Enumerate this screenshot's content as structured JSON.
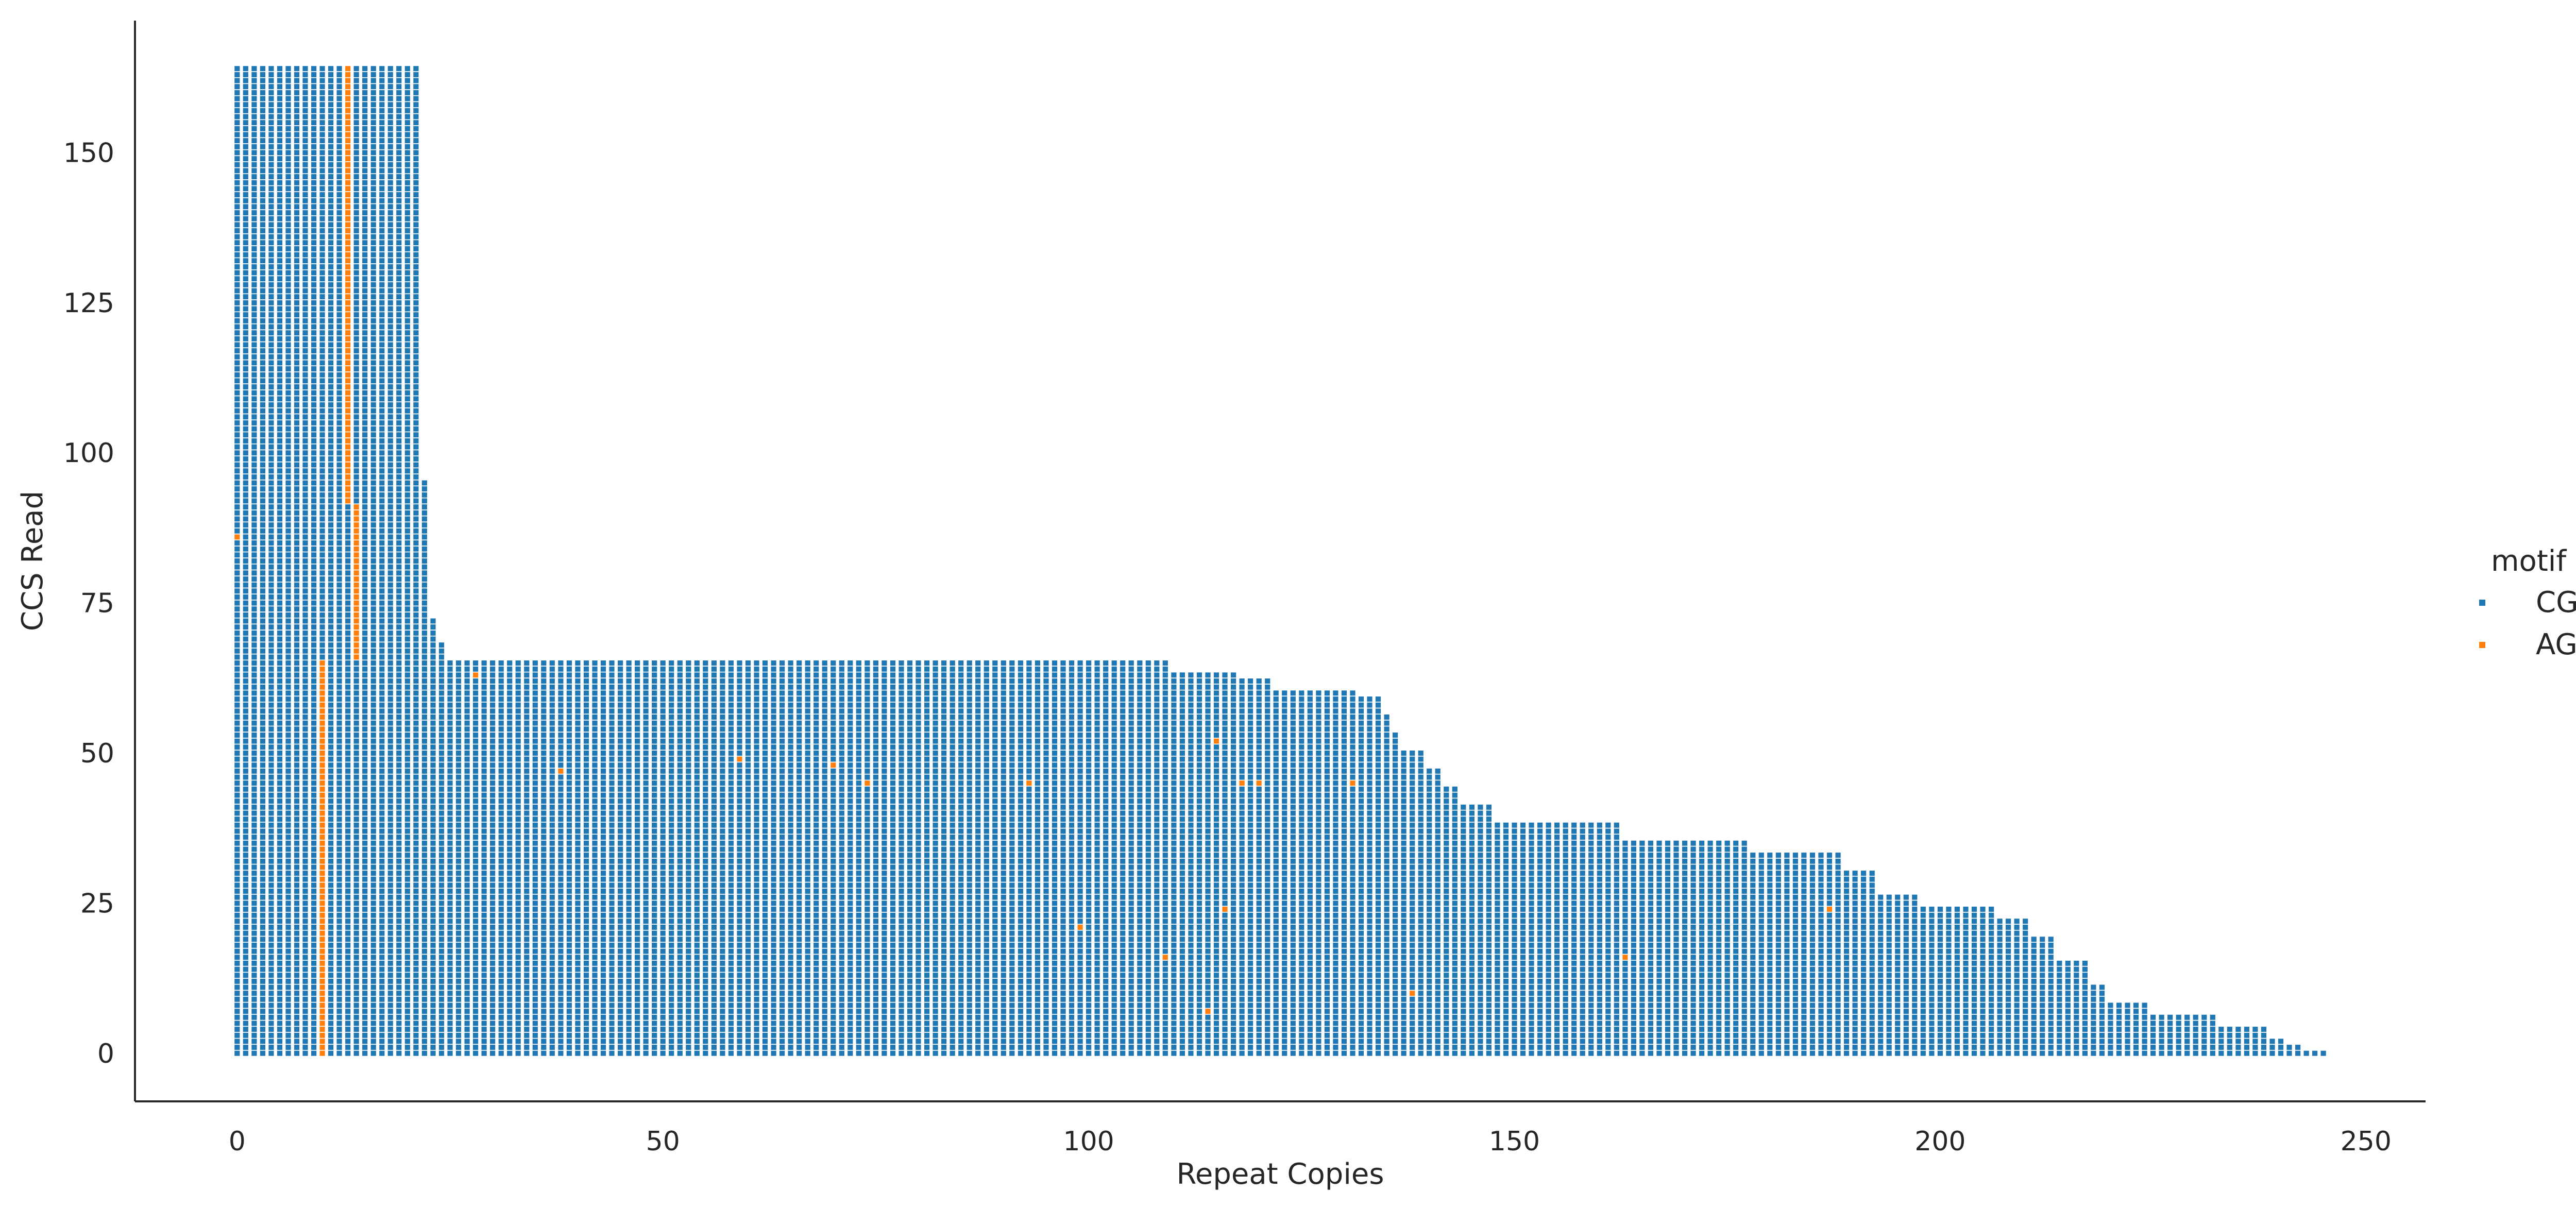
{
  "chart_data": {
    "type": "scatter",
    "title": "",
    "xlabel": "Repeat Copies",
    "ylabel": "CCS Read",
    "xlim": [
      -12,
      257
    ],
    "ylim": [
      -8,
      172
    ],
    "xticks": [
      0,
      50,
      100,
      150,
      200,
      250
    ],
    "yticks": [
      0,
      25,
      50,
      75,
      100,
      125,
      150
    ],
    "grid": false,
    "legend": {
      "title": "motif",
      "placement": "right",
      "entries": [
        {
          "name": "CGG",
          "color": "#1f77b4"
        },
        {
          "name": "AGG",
          "color": "#ff7f0e"
        }
      ]
    },
    "reads": {
      "y_range": [
        0,
        164
      ],
      "description_of_marks": "each read y has one mark per repeat copy from x=0 to x=read_length-1",
      "read_length_profile": [
        {
          "y_from": 0,
          "y_to": 0,
          "length": 246
        },
        {
          "y_from": 1,
          "y_to": 1,
          "length": 243
        },
        {
          "y_from": 2,
          "y_to": 2,
          "length": 241
        },
        {
          "y_from": 3,
          "y_to": 4,
          "length": 239
        },
        {
          "y_from": 5,
          "y_to": 6,
          "length": 233
        },
        {
          "y_from": 7,
          "y_to": 8,
          "length": 225
        },
        {
          "y_from": 9,
          "y_to": 11,
          "length": 220
        },
        {
          "y_from": 12,
          "y_to": 15,
          "length": 218
        },
        {
          "y_from": 16,
          "y_to": 19,
          "length": 214
        },
        {
          "y_from": 20,
          "y_to": 22,
          "length": 211
        },
        {
          "y_from": 23,
          "y_to": 24,
          "length": 207
        },
        {
          "y_from": 25,
          "y_to": 26,
          "length": 198
        },
        {
          "y_from": 27,
          "y_to": 30,
          "length": 193
        },
        {
          "y_from": 31,
          "y_to": 33,
          "length": 189
        },
        {
          "y_from": 34,
          "y_to": 35,
          "length": 178
        },
        {
          "y_from": 36,
          "y_to": 38,
          "length": 163
        },
        {
          "y_from": 39,
          "y_to": 41,
          "length": 148
        },
        {
          "y_from": 42,
          "y_to": 44,
          "length": 144
        },
        {
          "y_from": 45,
          "y_to": 47,
          "length": 142
        },
        {
          "y_from": 48,
          "y_to": 50,
          "length": 140
        },
        {
          "y_from": 51,
          "y_to": 53,
          "length": 137
        },
        {
          "y_from": 54,
          "y_to": 56,
          "length": 136
        },
        {
          "y_from": 57,
          "y_to": 59,
          "length": 135
        },
        {
          "y_from": 60,
          "y_to": 60,
          "length": 132
        },
        {
          "y_from": 61,
          "y_to": 62,
          "length": 122
        },
        {
          "y_from": 63,
          "y_to": 63,
          "length": 118
        },
        {
          "y_from": 64,
          "y_to": 65,
          "length": 110
        },
        {
          "y_from": 66,
          "y_to": 68,
          "length": 25
        },
        {
          "y_from": 69,
          "y_to": 72,
          "length": 24
        },
        {
          "y_from": 73,
          "y_to": 95,
          "length": 23
        },
        {
          "y_from": 96,
          "y_to": 164,
          "length": 22
        }
      ],
      "agg_columns": [
        {
          "x": 10,
          "y_from": 0,
          "y_to": 65
        },
        {
          "x": 14,
          "y_from": 66,
          "y_to": 91
        },
        {
          "x": 13,
          "y_from": 92,
          "y_to": 164
        }
      ],
      "agg_isolated": [
        {
          "x": 0,
          "y": 86
        },
        {
          "x": 28,
          "y": 63
        },
        {
          "x": 38,
          "y": 47
        },
        {
          "x": 59,
          "y": 49
        },
        {
          "x": 70,
          "y": 48
        },
        {
          "x": 74,
          "y": 45
        },
        {
          "x": 93,
          "y": 45
        },
        {
          "x": 99,
          "y": 21
        },
        {
          "x": 109,
          "y": 16
        },
        {
          "x": 114,
          "y": 7
        },
        {
          "x": 115,
          "y": 52
        },
        {
          "x": 116,
          "y": 24
        },
        {
          "x": 118,
          "y": 45
        },
        {
          "x": 120,
          "y": 45
        },
        {
          "x": 131,
          "y": 45
        },
        {
          "x": 138,
          "y": 10
        },
        {
          "x": 163,
          "y": 16
        },
        {
          "x": 187,
          "y": 24
        }
      ]
    }
  }
}
